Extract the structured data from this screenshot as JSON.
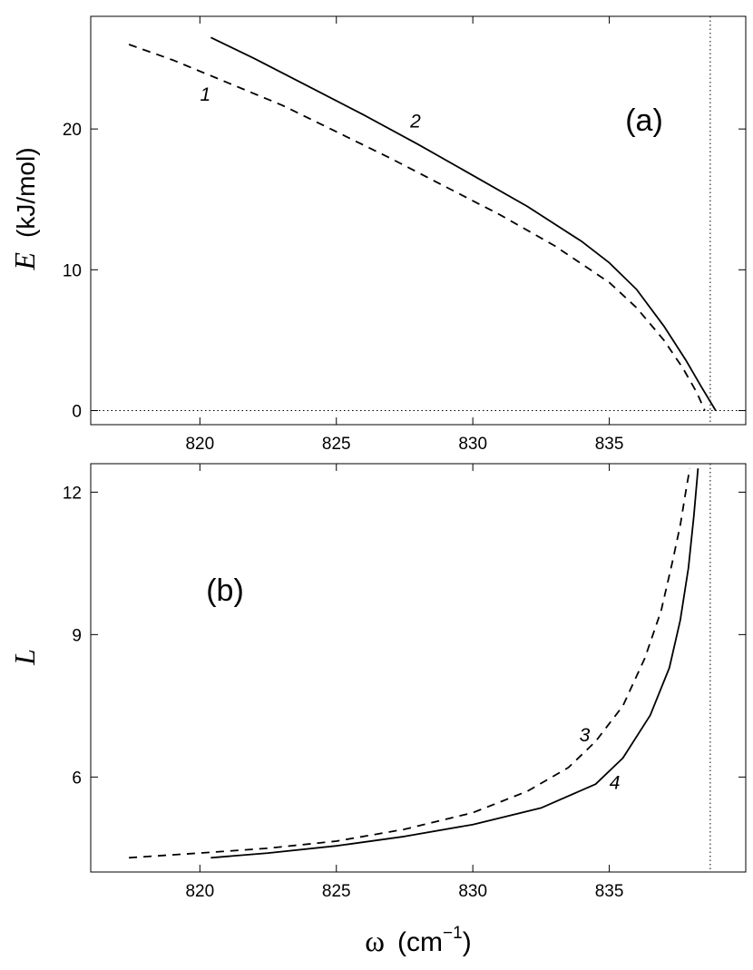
{
  "chart_data": [
    {
      "type": "line",
      "panel_label": "(a)",
      "ylabel_symbol": "E",
      "ylabel_unit": "(kJ/mol)",
      "xlim": [
        816,
        840
      ],
      "ylim": [
        -1,
        28
      ],
      "xticks": [
        820,
        825,
        830,
        835
      ],
      "yticks": [
        0,
        10,
        20
      ],
      "vline_x": 838.7,
      "hline_y": 0,
      "series": [
        {
          "name": "1",
          "style": "dashed",
          "color": "#000000",
          "x": [
            817.4,
            819,
            821,
            823,
            825,
            827,
            829,
            831,
            833,
            835,
            836,
            837,
            837.7,
            838.2,
            838.5
          ],
          "y": [
            26.0,
            24.9,
            23.3,
            21.7,
            19.8,
            17.9,
            15.9,
            13.9,
            11.7,
            9.1,
            7.3,
            5.0,
            3.0,
            1.3,
            0.0
          ]
        },
        {
          "name": "2",
          "style": "solid",
          "color": "#000000",
          "x": [
            820.4,
            822,
            824,
            826,
            828,
            830,
            832,
            834,
            835,
            836,
            837,
            837.8,
            838.4,
            838.9
          ],
          "y": [
            26.5,
            25.0,
            23.0,
            21.0,
            18.9,
            16.7,
            14.5,
            12.0,
            10.5,
            8.6,
            6.0,
            3.6,
            1.6,
            0.0
          ]
        }
      ],
      "curve_labels": [
        {
          "text": "1",
          "x": 820.2,
          "y": 22.0
        },
        {
          "text": "2",
          "x": 827.9,
          "y": 20.1
        }
      ]
    },
    {
      "type": "line",
      "panel_label": "(b)",
      "ylabel_symbol": "L",
      "xlabel_symbol": "ω",
      "xlabel_unit": "(cm",
      "xlabel_exp": "−1",
      "xlabel_close": ")",
      "xlim": [
        816,
        840
      ],
      "ylim": [
        4.0,
        12.6
      ],
      "xticks": [
        820,
        825,
        830,
        835
      ],
      "yticks": [
        6,
        9,
        12
      ],
      "vline_x": 838.7,
      "series": [
        {
          "name": "3",
          "style": "dashed",
          "color": "#000000",
          "x": [
            817.4,
            820,
            822.5,
            825,
            827.5,
            830,
            832,
            833.5,
            834.5,
            835.5,
            836.3,
            836.9,
            837.3,
            837.6,
            837.8,
            837.95
          ],
          "y": [
            4.3,
            4.4,
            4.5,
            4.65,
            4.9,
            5.25,
            5.7,
            6.2,
            6.75,
            7.5,
            8.5,
            9.5,
            10.5,
            11.3,
            12.0,
            12.5
          ]
        },
        {
          "name": "4",
          "style": "solid",
          "color": "#000000",
          "x": [
            820.4,
            822.5,
            825,
            827.5,
            830,
            832.5,
            834.5,
            835.5,
            836.5,
            837.2,
            837.6,
            837.9,
            838.1,
            838.25
          ],
          "y": [
            4.3,
            4.4,
            4.55,
            4.75,
            5.0,
            5.35,
            5.85,
            6.4,
            7.3,
            8.3,
            9.3,
            10.4,
            11.5,
            12.5
          ]
        }
      ],
      "curve_labels": [
        {
          "text": "3",
          "x": 834.1,
          "y": 6.75
        },
        {
          "text": "4",
          "x": 835.2,
          "y": 5.75
        }
      ]
    }
  ]
}
